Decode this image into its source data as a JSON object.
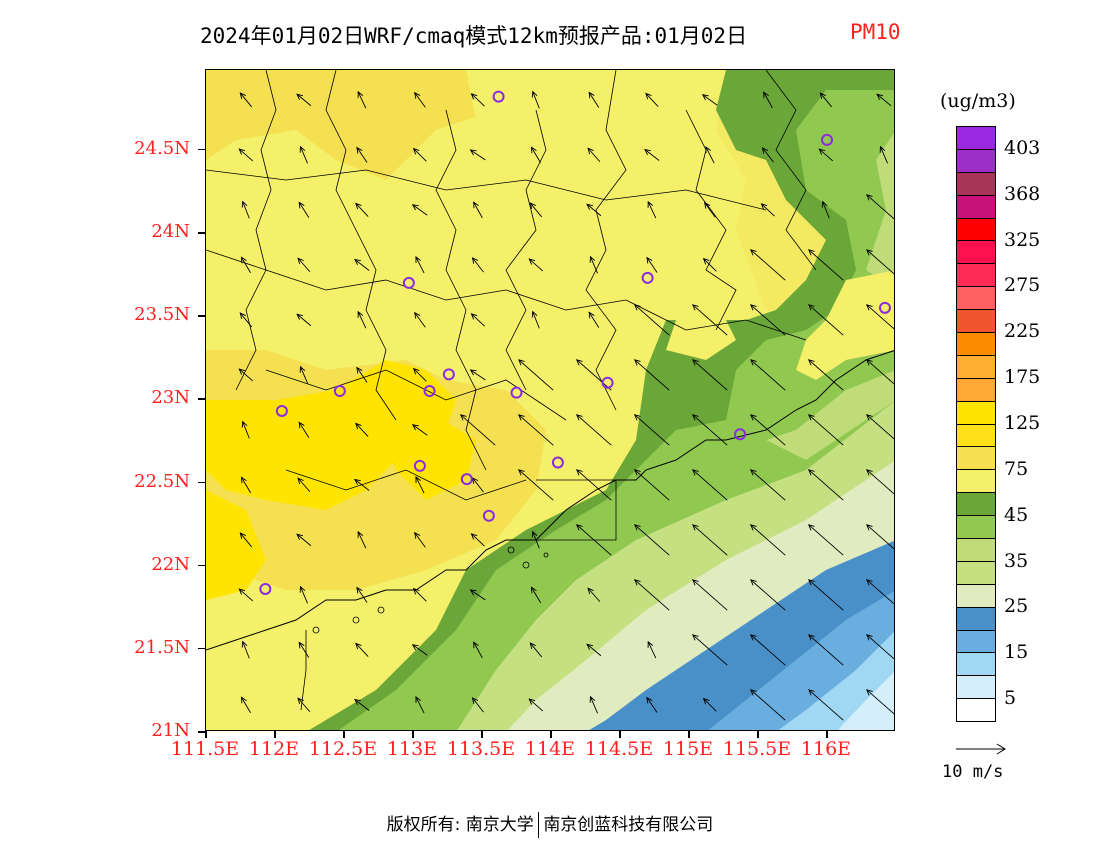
{
  "title": {
    "text": "2024年01月02日WRF/cmaq模式12km预报产品:01月02日",
    "variable": "PM10"
  },
  "axes": {
    "y_ticks": [
      "24.5N",
      "24N",
      "23.5N",
      "23N",
      "22.5N",
      "22N",
      "21.5N",
      "21N"
    ],
    "y_values": [
      24.5,
      24.0,
      23.5,
      23.0,
      22.5,
      22.0,
      21.5,
      21.0
    ],
    "x_ticks": [
      "111.5E",
      "112E",
      "112.5E",
      "113E",
      "113.5E",
      "114E",
      "114.5E",
      "115E",
      "115.5E",
      "116E"
    ],
    "x_values": [
      111.5,
      112.0,
      112.5,
      113.0,
      113.5,
      114.0,
      114.5,
      115.0,
      115.5,
      116.0
    ],
    "lon_range": [
      111.5,
      116.5
    ],
    "lat_range": [
      21.0,
      24.98
    ]
  },
  "legend": {
    "unit": "(ug/m3)",
    "colors_top_to_bottom": [
      "#9a28e0",
      "#9b2fc8",
      "#a8345a",
      "#c8127a",
      "#ff0000",
      "#ff1050",
      "#ff2a55",
      "#ff6060",
      "#f05530",
      "#ff8c00",
      "#ffb030",
      "#ffa838",
      "#ffe400",
      "#ffe01a",
      "#f4e050",
      "#f4f06a",
      "#6aa638",
      "#90c850",
      "#c0dc78",
      "#c4e080",
      "#e0ecc0",
      "#4a90c8",
      "#6aaee0",
      "#a0d8f4",
      "#d4eefa",
      "#ffffff"
    ],
    "labels": [
      "403",
      "368",
      "325",
      "275",
      "225",
      "175",
      "125",
      "75",
      "45",
      "35",
      "25",
      "15",
      "5"
    ]
  },
  "wind_reference": {
    "label": "10 m/s"
  },
  "cities": [
    {
      "lon": 113.62,
      "lat": 24.82
    },
    {
      "lon": 116.0,
      "lat": 24.56
    },
    {
      "lon": 112.97,
      "lat": 23.7
    },
    {
      "lon": 114.7,
      "lat": 23.73
    },
    {
      "lon": 116.42,
      "lat": 23.55
    },
    {
      "lon": 112.47,
      "lat": 23.05
    },
    {
      "lon": 113.12,
      "lat": 23.05
    },
    {
      "lon": 113.26,
      "lat": 23.15
    },
    {
      "lon": 113.75,
      "lat": 23.04
    },
    {
      "lon": 114.41,
      "lat": 23.1
    },
    {
      "lon": 112.05,
      "lat": 22.93
    },
    {
      "lon": 113.05,
      "lat": 22.6
    },
    {
      "lon": 113.39,
      "lat": 22.52
    },
    {
      "lon": 114.05,
      "lat": 22.62
    },
    {
      "lon": 113.55,
      "lat": 22.3
    },
    {
      "lon": 115.37,
      "lat": 22.79
    },
    {
      "lon": 111.93,
      "lat": 21.86
    }
  ],
  "footer": {
    "left": "版权所有: 南京大学",
    "right": "南京创蓝科技有限公司"
  }
}
